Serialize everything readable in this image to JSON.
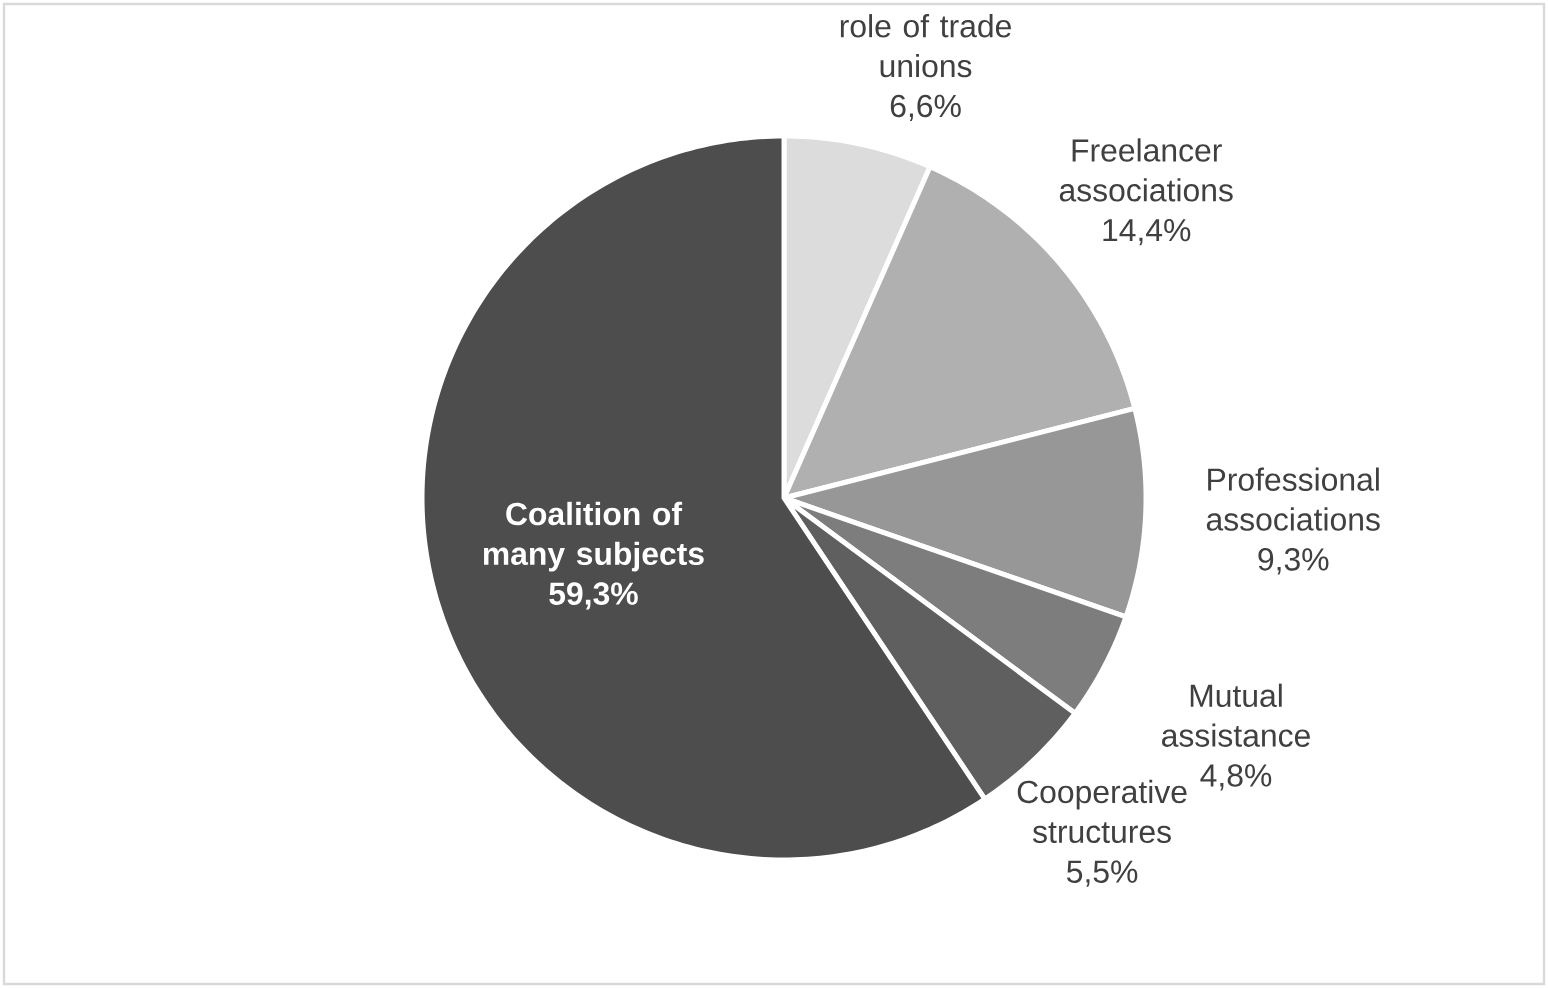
{
  "chart_data": {
    "type": "pie",
    "categories": [
      "role of trade unions",
      "Freelancer associations",
      "Professional associations",
      "Mutual assistance",
      "Cooperative structures",
      "Coalition of many subjects"
    ],
    "values": [
      6.6,
      14.4,
      9.3,
      4.8,
      5.5,
      59.3
    ],
    "value_labels": [
      "6,6%",
      "14,4%",
      "9,3%",
      "4,8%",
      "5,5%",
      "59,3%"
    ],
    "colors": [
      "#dcdcdc",
      "#b0b0b0",
      "#979797",
      "#7d7d7d",
      "#5f5f5f",
      "#4d4d4d"
    ]
  }
}
